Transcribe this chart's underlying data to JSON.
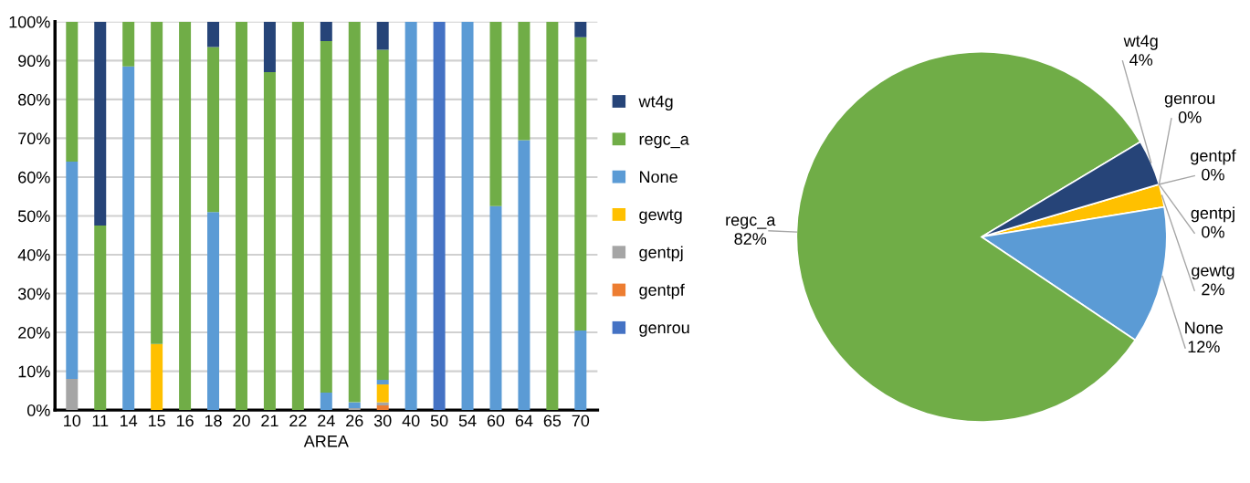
{
  "chart_data": [
    {
      "type": "bar",
      "stacked": true,
      "xlabel": "AREA",
      "categories": [
        "10",
        "11",
        "14",
        "15",
        "16",
        "18",
        "20",
        "21",
        "22",
        "24",
        "26",
        "30",
        "40",
        "50",
        "54",
        "60",
        "64",
        "65",
        "70"
      ],
      "series": [
        {
          "name": "genrou",
          "color": "#4472c4",
          "values": [
            0,
            0,
            0,
            0,
            0,
            0,
            0,
            0,
            0,
            0,
            0,
            0,
            0,
            100,
            0,
            0,
            0,
            0,
            0
          ]
        },
        {
          "name": "gentpf",
          "color": "#ed7d31",
          "values": [
            0,
            0,
            0,
            0,
            0,
            0,
            0,
            0,
            0,
            0,
            0,
            1.2,
            0,
            0,
            0,
            0,
            0,
            0,
            0
          ]
        },
        {
          "name": "gentpj",
          "color": "#a5a5a5",
          "values": [
            8,
            0,
            0,
            0,
            0,
            0,
            0,
            0,
            0,
            0,
            0.5,
            0.8,
            0,
            0,
            0,
            0,
            0,
            0,
            0
          ]
        },
        {
          "name": "gewtg",
          "color": "#ffc000",
          "values": [
            0,
            0,
            0,
            17,
            0,
            0,
            0,
            0,
            0,
            0,
            0,
            4.6,
            0,
            0,
            0,
            0,
            0,
            0,
            0
          ]
        },
        {
          "name": "None",
          "color": "#5b9bd5",
          "values": [
            56,
            0,
            88.5,
            0,
            0,
            51,
            0,
            0,
            0,
            4.5,
            1.5,
            1.2,
            100,
            0,
            100,
            52.5,
            69.5,
            0,
            20.5
          ]
        },
        {
          "name": "regc_a",
          "color": "#70ad47",
          "values": [
            36,
            47.5,
            11.5,
            83,
            100,
            42.5,
            100,
            87,
            100,
            90.5,
            98,
            85,
            0,
            0,
            0,
            47.5,
            30.5,
            100,
            75.5
          ]
        },
        {
          "name": "wt4g",
          "color": "#264478",
          "values": [
            0,
            52.5,
            0,
            0,
            0,
            6.5,
            0,
            13,
            0,
            5,
            0,
            7.2,
            0,
            0,
            0,
            0,
            0,
            0,
            4
          ]
        }
      ],
      "ylim": [
        0,
        100
      ],
      "yticks": [
        {
          "value": 0,
          "label": "0%"
        },
        {
          "value": 10,
          "label": "10%"
        },
        {
          "value": 20,
          "label": "20%"
        },
        {
          "value": 30,
          "label": "30%"
        },
        {
          "value": 40,
          "label": "40%"
        },
        {
          "value": 50,
          "label": "50%"
        },
        {
          "value": 60,
          "label": "60%"
        },
        {
          "value": 70,
          "label": "70%"
        },
        {
          "value": 80,
          "label": "80%"
        },
        {
          "value": 90,
          "label": "90%"
        },
        {
          "value": 100,
          "label": "100%"
        }
      ],
      "grid": "y",
      "legend": "right"
    },
    {
      "type": "pie",
      "categories": [
        "genrou",
        "gentpf",
        "gentpj",
        "gewtg",
        "None",
        "regc_a",
        "wt4g"
      ],
      "values": [
        0,
        0,
        0,
        2,
        12,
        82,
        4
      ],
      "value_labels": [
        "0%",
        "0%",
        "0%",
        "2%",
        "12%",
        "82%",
        "4%"
      ],
      "colors": [
        "#4472c4",
        "#ed7d31",
        "#a5a5a5",
        "#ffc000",
        "#5b9bd5",
        "#70ad47",
        "#264478"
      ]
    }
  ]
}
